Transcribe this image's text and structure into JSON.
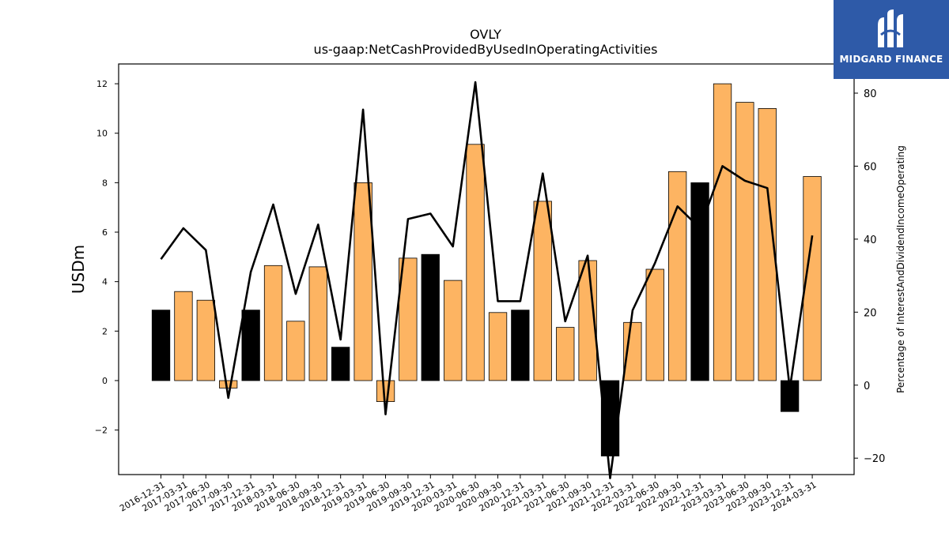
{
  "chart_data": {
    "type": "bar",
    "title": "OVLY",
    "subtitle": "us-gaap:NetCashProvidedByUsedInOperatingActivities",
    "ylabel": "USDm",
    "y2label": "Percentage of InterestAndDividendIncomeOperating",
    "categories": [
      "2016-12-31",
      "2017-03-31",
      "2017-06-30",
      "2017-09-30",
      "2017-12-31",
      "2018-03-31",
      "2018-06-30",
      "2018-09-30",
      "2018-12-31",
      "2019-03-31",
      "2019-06-30",
      "2019-09-30",
      "2019-12-31",
      "2020-03-31",
      "2020-06-30",
      "2020-09-30",
      "2020-12-31",
      "2021-03-31",
      "2021-06-30",
      "2021-09-30",
      "2021-12-31",
      "2022-03-31",
      "2022-06-30",
      "2022-09-30",
      "2022-12-31",
      "2023-03-31",
      "2023-06-30",
      "2023-09-30",
      "2023-12-31",
      "2024-03-31"
    ],
    "series": [
      {
        "type": "bar",
        "values": [
          2.85,
          3.6,
          3.25,
          -0.3,
          2.85,
          4.65,
          2.4,
          4.6,
          1.35,
          8.0,
          -0.85,
          4.95,
          5.1,
          4.05,
          9.55,
          2.75,
          2.85,
          7.25,
          2.15,
          4.85,
          -3.05,
          2.35,
          4.5,
          8.45,
          8.0,
          12.0,
          11.25,
          11.0,
          -1.25,
          8.25
        ],
        "highlight": [
          true,
          false,
          false,
          false,
          true,
          false,
          false,
          false,
          true,
          false,
          false,
          false,
          true,
          false,
          false,
          false,
          true,
          false,
          false,
          false,
          true,
          false,
          false,
          false,
          true,
          false,
          false,
          false,
          true,
          false
        ],
        "color": "#fdb462",
        "highlight_color": "#000000"
      },
      {
        "type": "line",
        "axis": "right",
        "values": [
          34.5,
          43.0,
          37.0,
          -3.5,
          31.0,
          49.5,
          25.0,
          44.0,
          12.5,
          75.5,
          -8.0,
          45.5,
          47.0,
          38.0,
          83.0,
          23.0,
          23.0,
          58.0,
          17.5,
          35.5,
          -25.5,
          20.5,
          33.5,
          49.0,
          43.0,
          60.0,
          56.0,
          54.0,
          -1.0,
          41.0
        ],
        "color": "#000000"
      }
    ],
    "ylim": [
      -3.8,
      12.8
    ],
    "y2lim": [
      -24.5,
      88.0
    ],
    "yticks": [
      -2,
      0,
      2,
      4,
      6,
      8,
      10,
      12
    ],
    "yticklabels": [
      "−2",
      "0",
      "2",
      "4",
      "6",
      "8",
      "10",
      "12"
    ],
    "y2ticks": [
      -20,
      0,
      20,
      40,
      60,
      80
    ],
    "y2ticklabels": [
      "−20",
      "0",
      "20",
      "40",
      "60",
      "80"
    ],
    "grid": false,
    "legend": "none"
  },
  "logo": {
    "text": "MIDGARD FINANCE",
    "icon": "midgard-logo-icon"
  }
}
